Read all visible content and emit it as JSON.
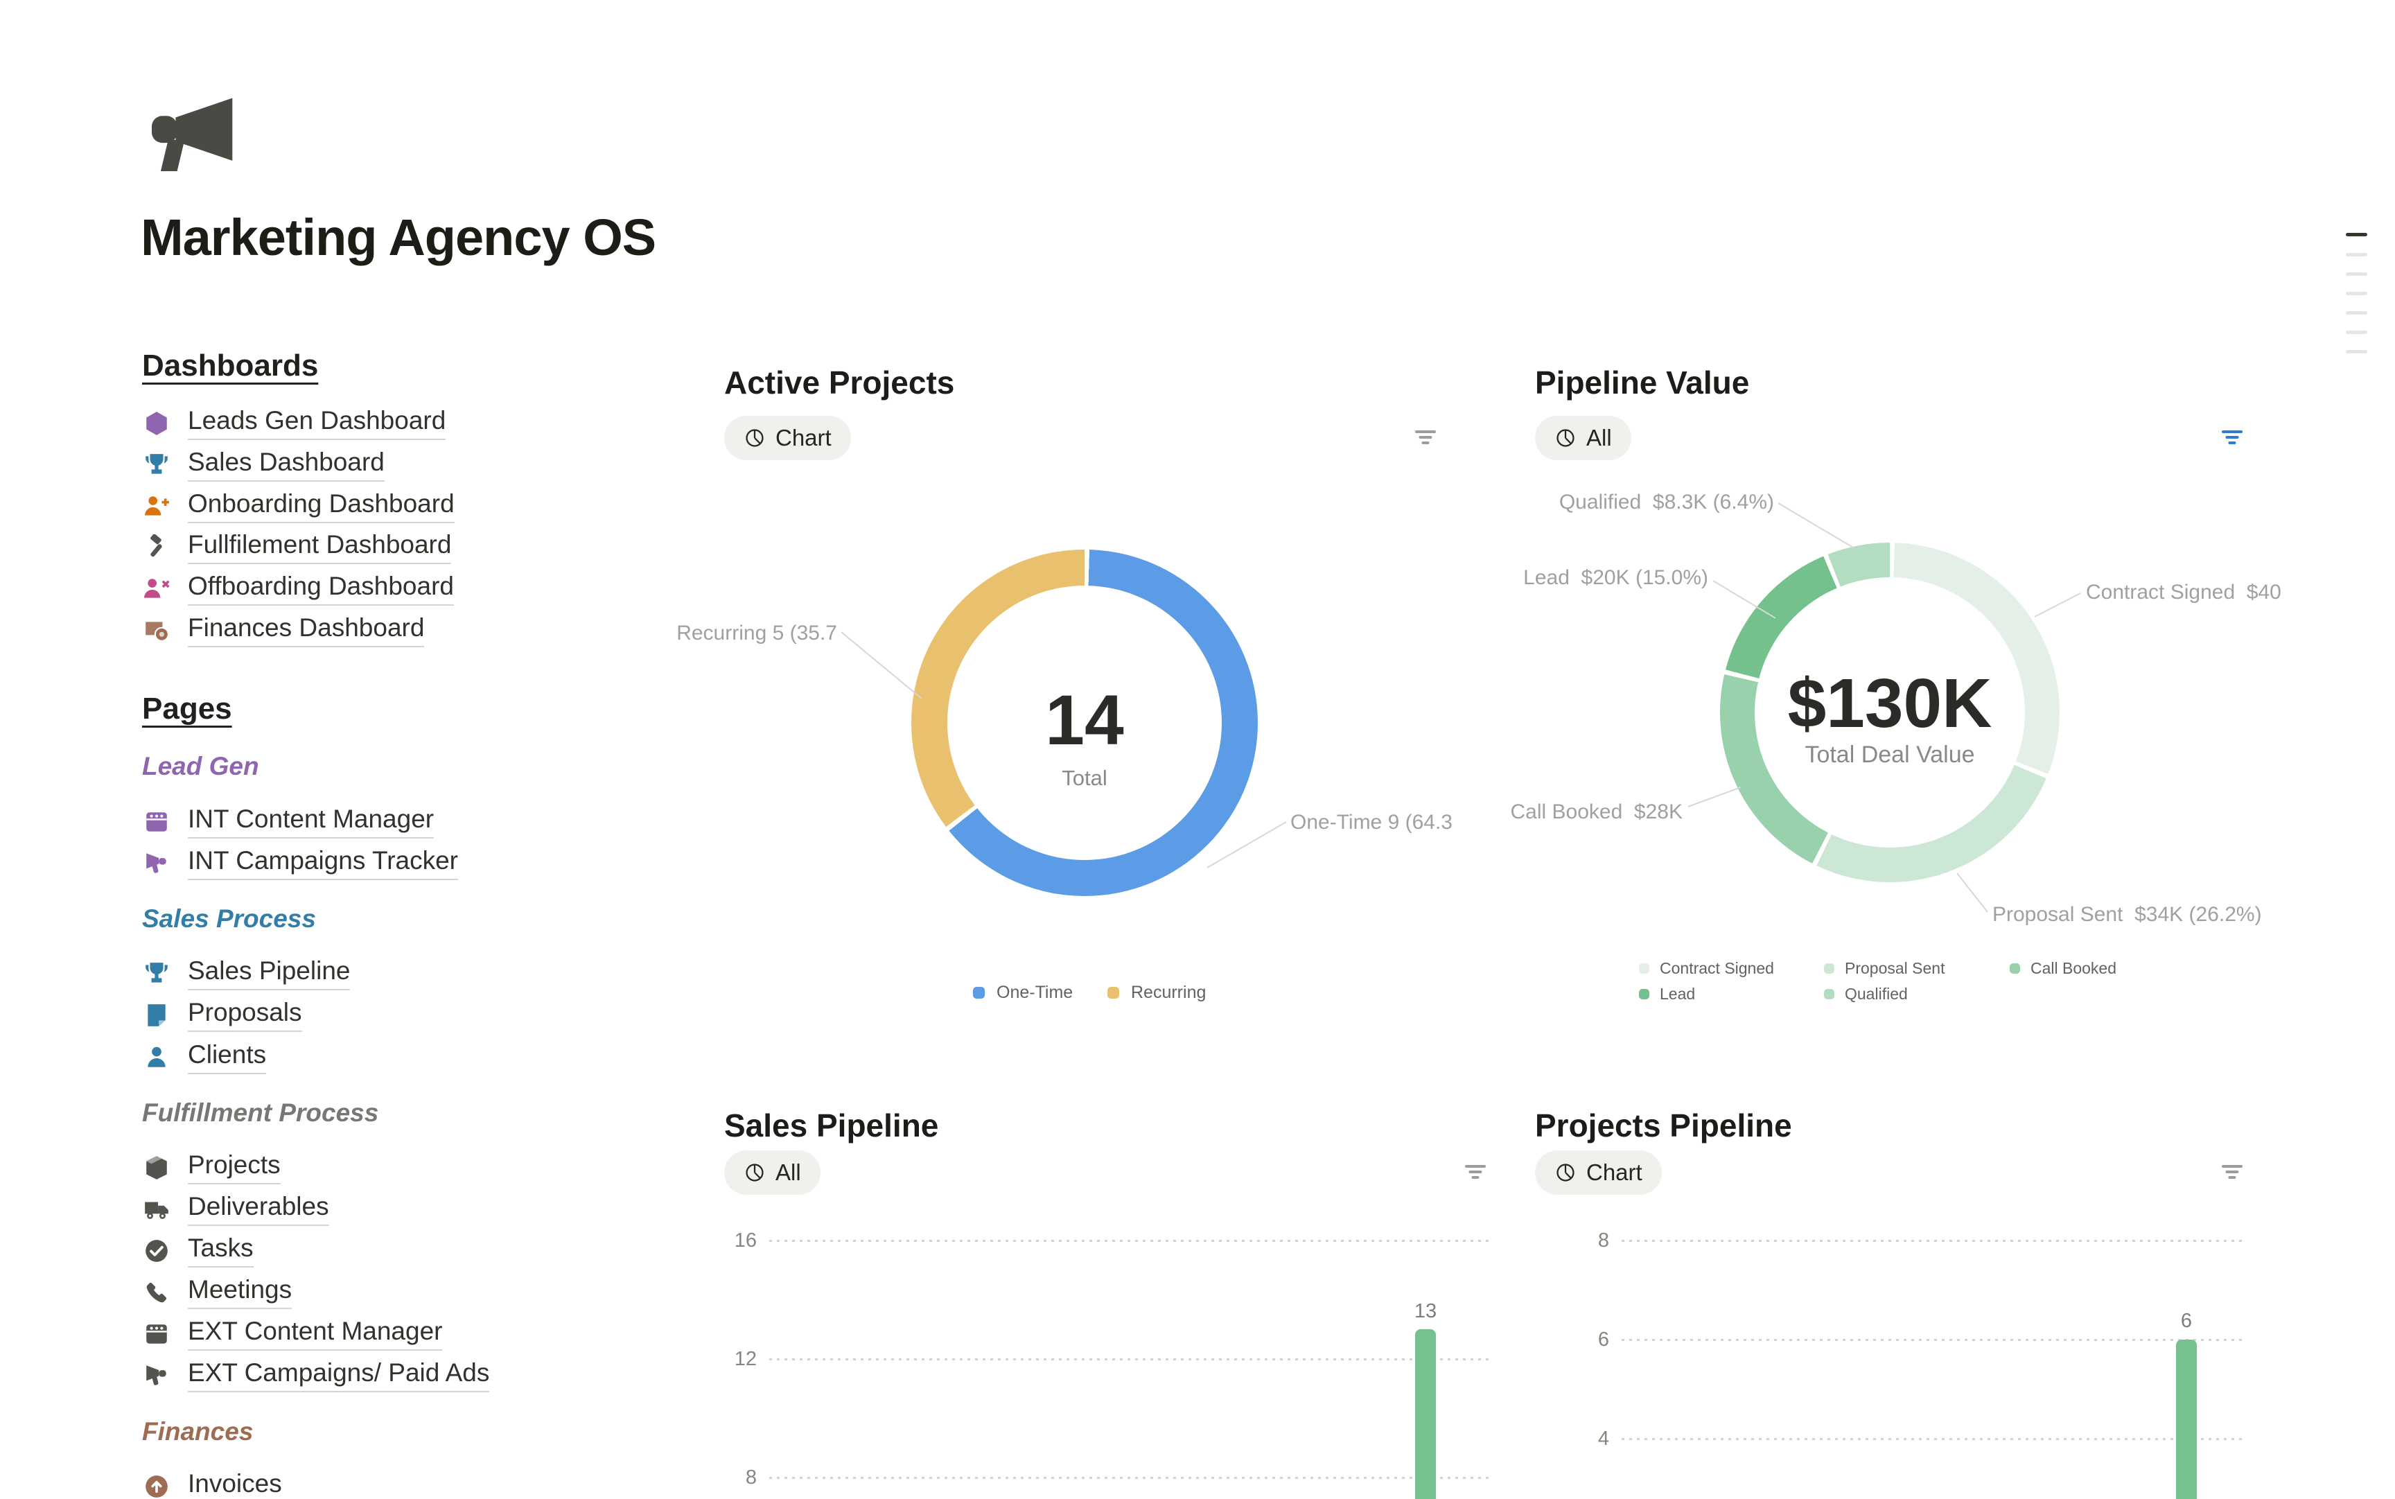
{
  "chart_data": [
    {
      "type": "pie",
      "title": "Active Projects",
      "donut": true,
      "center_value": 14,
      "center_label": "Total",
      "slices": [
        {
          "label": "One-Time",
          "value": 9,
          "pct": 64.3,
          "color": "#5C9CE6"
        },
        {
          "label": "Recurring",
          "value": 5,
          "pct": 35.7,
          "color": "#E9C16E"
        }
      ],
      "legend_position": "bottom"
    },
    {
      "type": "pie",
      "title": "Pipeline Value",
      "donut": true,
      "center_value": "$130K",
      "center_label": "Total Deal Value",
      "slices": [
        {
          "label": "Contract Signed",
          "value_k_usd": 40,
          "pct": 30.9,
          "color": "#E4F0E7"
        },
        {
          "label": "Proposal Sent",
          "value_k_usd": 34,
          "pct": 26.2,
          "color": "#CDE7D6"
        },
        {
          "label": "Call Booked",
          "value_k_usd": 28,
          "pct": 21.5,
          "color": "#98D1AC"
        },
        {
          "label": "Lead",
          "value_k_usd": 20,
          "pct": 15.0,
          "color": "#74C18D"
        },
        {
          "label": "Qualified",
          "value_k_usd": 8.3,
          "pct": 6.4,
          "color": "#B3DDC0"
        }
      ],
      "legend_position": "bottom"
    },
    {
      "type": "bar",
      "title": "Sales Pipeline",
      "yticks": [
        16,
        12,
        8
      ],
      "bars": [
        {
          "value": 13,
          "color": "#77C08F"
        }
      ]
    },
    {
      "type": "bar",
      "title": "Projects Pipeline",
      "yticks": [
        8,
        6,
        4
      ],
      "bars": [
        {
          "value": 6,
          "color": "#77C08F"
        }
      ]
    }
  ],
  "header": {
    "title": "Marketing Agency OS",
    "logo_icon": "megaphone-icon"
  },
  "sidebar": {
    "dashboards_heading": "Dashboards",
    "dashboards": [
      {
        "label": "Leads Gen Dashboard",
        "icon": "hexagon-icon",
        "color": "#9065B0"
      },
      {
        "label": "Sales Dashboard",
        "icon": "trophy-icon",
        "color": "#337EA9"
      },
      {
        "label": "Onboarding Dashboard",
        "icon": "person-add-icon",
        "color": "#D9730D"
      },
      {
        "label": "Fullfilement Dashboard",
        "icon": "hammer-icon",
        "color": "#55534E"
      },
      {
        "label": "Offboarding Dashboard",
        "icon": "person-remove-icon",
        "color": "#C14C8A"
      },
      {
        "label": "Finances Dashboard",
        "icon": "money-icon",
        "color": "#9F6B53"
      }
    ],
    "pages_heading": "Pages",
    "groups": [
      {
        "subheading": "Lead Gen",
        "color": "#9065B0",
        "items": [
          {
            "label": "INT Content Manager",
            "icon": "clapperboard-icon",
            "color": "#9065B0"
          },
          {
            "label": "INT Campaigns Tracker",
            "icon": "megaphone-icon",
            "color": "#9065B0"
          }
        ]
      },
      {
        "subheading": "Sales Process",
        "color": "#337EA9",
        "items": [
          {
            "label": "Sales Pipeline",
            "icon": "trophy-icon",
            "color": "#337EA9"
          },
          {
            "label": "Proposals",
            "icon": "document-icon",
            "color": "#337EA9"
          },
          {
            "label": "Clients",
            "icon": "person-icon",
            "color": "#337EA9"
          }
        ]
      },
      {
        "subheading": "Fulfillment Process",
        "color": "#787774",
        "items": [
          {
            "label": "Projects",
            "icon": "box-icon",
            "color": "#55534E"
          },
          {
            "label": "Deliverables",
            "icon": "truck-icon",
            "color": "#55534E"
          },
          {
            "label": "Tasks",
            "icon": "check-circle-icon",
            "color": "#55534E"
          },
          {
            "label": "Meetings",
            "icon": "phone-icon",
            "color": "#55534E"
          },
          {
            "label": "EXT Content Manager",
            "icon": "clapperboard-icon",
            "color": "#55534E"
          },
          {
            "label": "EXT Campaigns/ Paid Ads",
            "icon": "megaphone-icon",
            "color": "#55534E"
          }
        ]
      },
      {
        "subheading": "Finances",
        "color": "#9F6B53",
        "items": [
          {
            "label": "Invoices",
            "icon": "arrow-up-circle-icon",
            "color": "#9F6B53"
          }
        ]
      }
    ]
  },
  "cards": {
    "active_projects": {
      "title": "Active Projects",
      "view_button": "Chart",
      "view_button_icon": "pie-chart-icon",
      "filter_icon": "filter-icon",
      "center_value": "14",
      "center_label": "Total",
      "callout_recurring": "Recurring 5 (35.7",
      "callout_one_time": "One-Time 9 (64.3",
      "legend": [
        {
          "label": "One-Time",
          "color": "#5C9CE6"
        },
        {
          "label": "Recurring",
          "color": "#E9C16E"
        }
      ]
    },
    "pipeline_value": {
      "title": "Pipeline Value",
      "view_button": "All",
      "view_button_icon": "pie-chart-icon",
      "filter_icon": "filter-icon",
      "center_value": "$130K",
      "center_label": "Total Deal Value",
      "callouts": {
        "qualified": "Qualified  $8.3K (6.4%)",
        "lead": "Lead  $20K (15.0%)",
        "contract_signed": "Contract Signed  $40",
        "call_booked": "Call Booked  $28K",
        "proposal_sent": "Proposal Sent  $34K (26.2%)"
      },
      "legend": [
        {
          "label": "Contract Signed",
          "color": "#E4F0E7"
        },
        {
          "label": "Proposal Sent",
          "color": "#CDE7D6"
        },
        {
          "label": "Call Booked",
          "color": "#98D1AC"
        },
        {
          "label": "Lead",
          "color": "#74C18D"
        },
        {
          "label": "Qualified",
          "color": "#B3DDC0"
        }
      ]
    },
    "sales_pipeline": {
      "title": "Sales Pipeline",
      "view_button": "All",
      "view_button_icon": "pie-chart-icon",
      "filter_icon": "filter-icon",
      "yticks": [
        "16",
        "12",
        "8"
      ],
      "bar_label": "13"
    },
    "projects_pipeline": {
      "title": "Projects Pipeline",
      "view_button": "Chart",
      "view_button_icon": "pie-chart-icon",
      "filter_icon": "filter-icon",
      "yticks": [
        "8",
        "6",
        "4"
      ],
      "bar_label": "6"
    }
  }
}
